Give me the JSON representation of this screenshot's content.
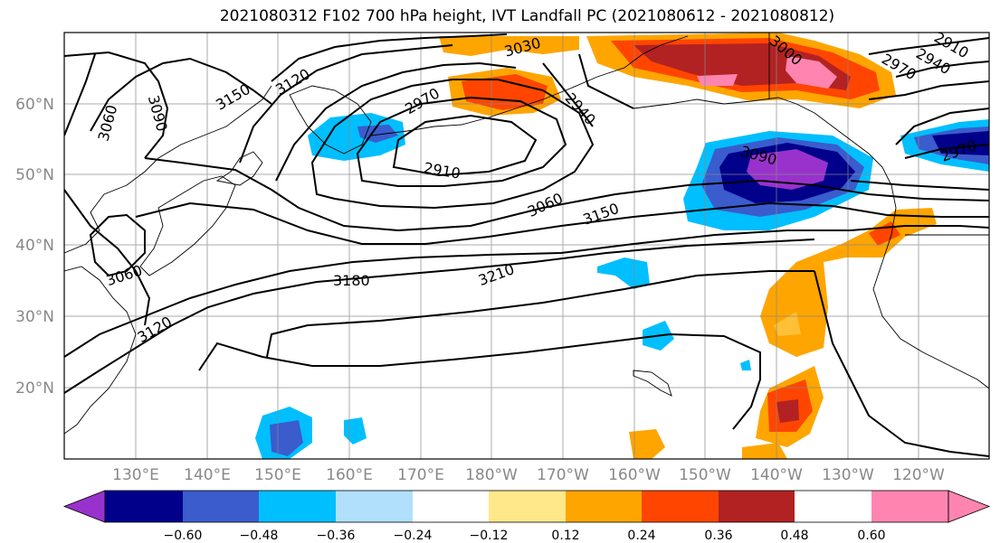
{
  "title": "2021080312 F102 700 hPa height, IVT Landfall PC (2021080612 - 2021080812)",
  "map": {
    "lon_labels": [
      "130°E",
      "140°E",
      "150°E",
      "160°E",
      "170°E",
      "180°W",
      "170°W",
      "160°W",
      "150°W",
      "140°W",
      "130°W",
      "120°W"
    ],
    "lat_labels": [
      "60°N",
      "50°N",
      "40°N",
      "30°N",
      "20°N"
    ],
    "contour_labels": [
      "3150",
      "3120",
      "3090",
      "3060",
      "3030",
      "2970",
      "2940",
      "2910",
      "3060",
      "3150",
      "3180",
      "3210",
      "3060",
      "3120",
      "3000",
      "3090",
      "2940",
      "2910",
      "2970",
      "2970"
    ]
  },
  "colorbar": {
    "levels": [
      "−0.60",
      "−0.48",
      "−0.36",
      "−0.24",
      "−0.12",
      "0.12",
      "0.24",
      "0.36",
      "0.48",
      "0.60"
    ],
    "colors": [
      "#9932cc",
      "#00008b",
      "#3a5ccd",
      "#00bfff",
      "#b0e0fb",
      "#ffffff",
      "#ffe88a",
      "#ffa500",
      "#ff4500",
      "#b22222",
      "#ff85b0"
    ]
  }
}
